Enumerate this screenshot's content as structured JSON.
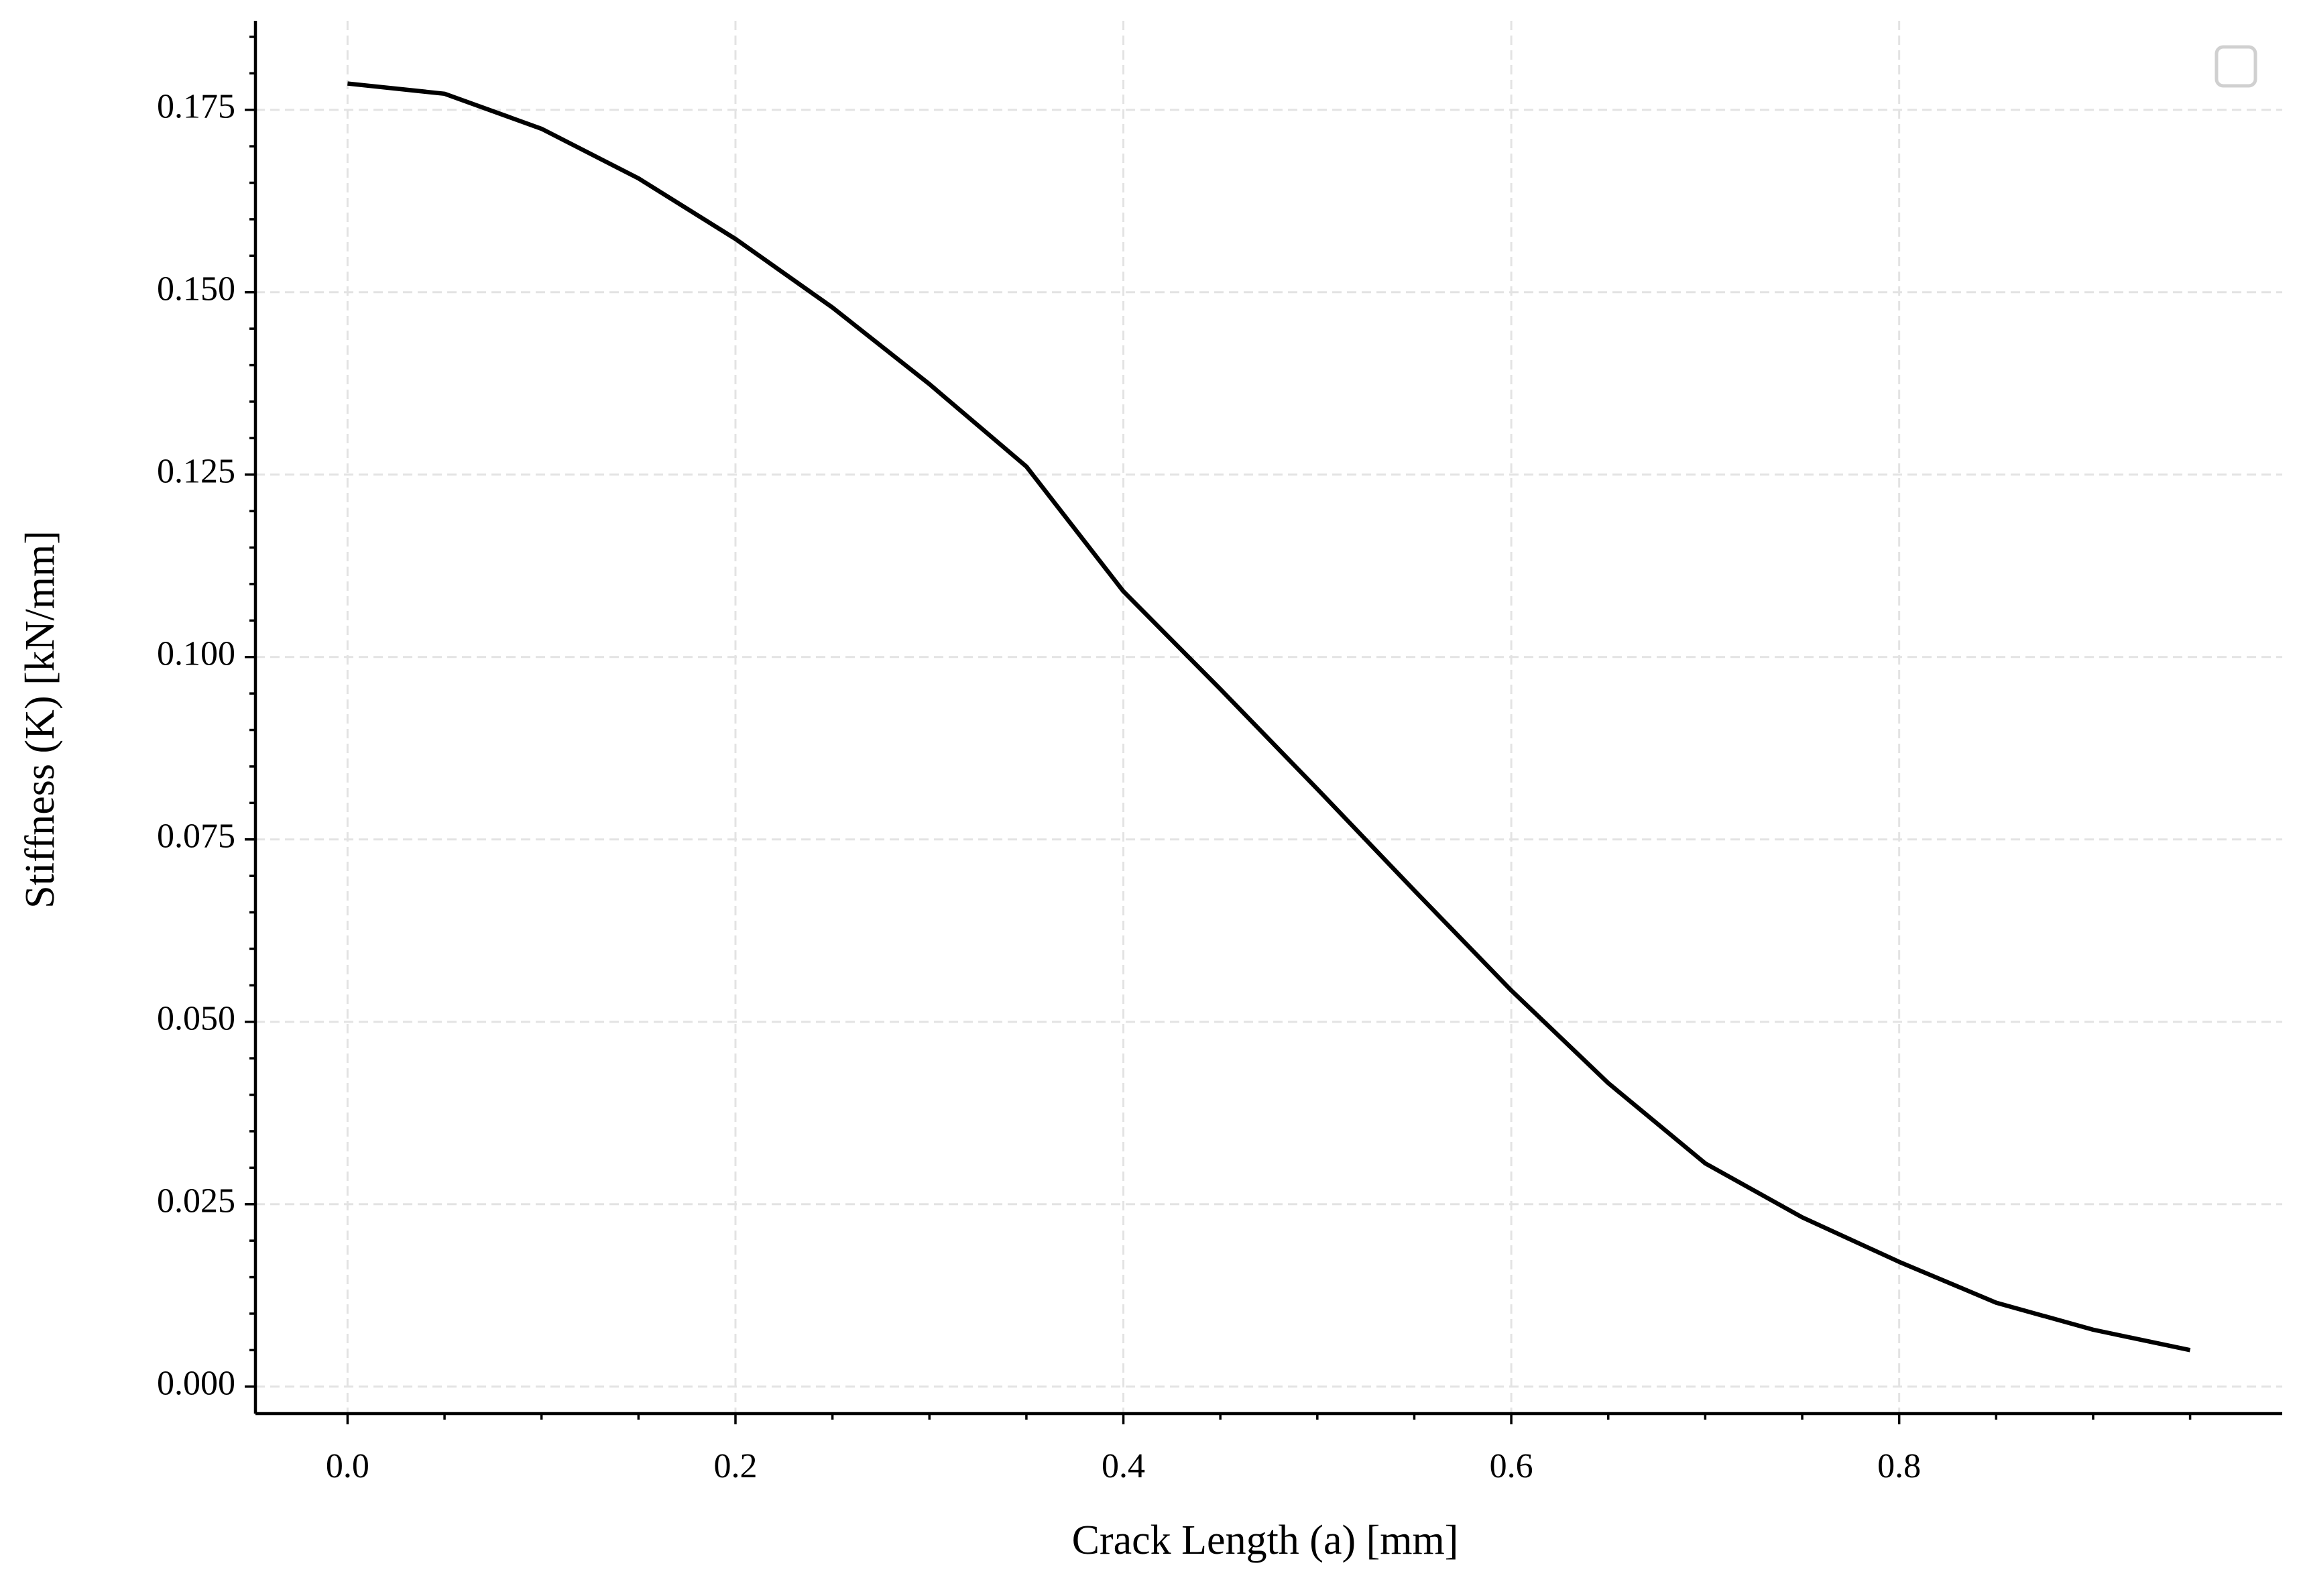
{
  "chart_data": {
    "type": "line",
    "xlabel": "Crack Length (a) [mm]",
    "ylabel": "Stiffness (K) [kN/mm]",
    "x": [
      0,
      0.05,
      0.1,
      0.15,
      0.2,
      0.25,
      0.3,
      0.35,
      0.4,
      0.45,
      0.5,
      0.55,
      0.6,
      0.65,
      0.7,
      0.75,
      0.8,
      0.85,
      0.9,
      0.95
    ],
    "series": [
      {
        "color": "#000000",
        "values": [
          0.1786,
          0.1772,
          0.1724,
          0.1656,
          0.1573,
          0.1479,
          0.1374,
          0.1261,
          0.109,
          0.0956,
          0.0819,
          0.068,
          0.0543,
          0.0416,
          0.0306,
          0.0232,
          0.0171,
          0.0115,
          0.0078,
          0.005
        ]
      }
    ],
    "xlim": [
      -0.0475,
      0.9975
    ],
    "ylim": [
      -0.0037,
      0.1872
    ],
    "xticks": [
      {
        "value": 0,
        "label": "0.0"
      },
      0.2,
      0.4,
      0.6,
      0.8
    ],
    "yticks": [
      {
        "value": 0,
        "label": "0.000"
      },
      0.025,
      {
        "value": 0.05,
        "label": "0.050"
      },
      0.075,
      {
        "value": 0.1,
        "label": "0.100"
      },
      0.125,
      {
        "value": 0.15,
        "label": "0.150"
      },
      0.175
    ],
    "grid": true
  }
}
